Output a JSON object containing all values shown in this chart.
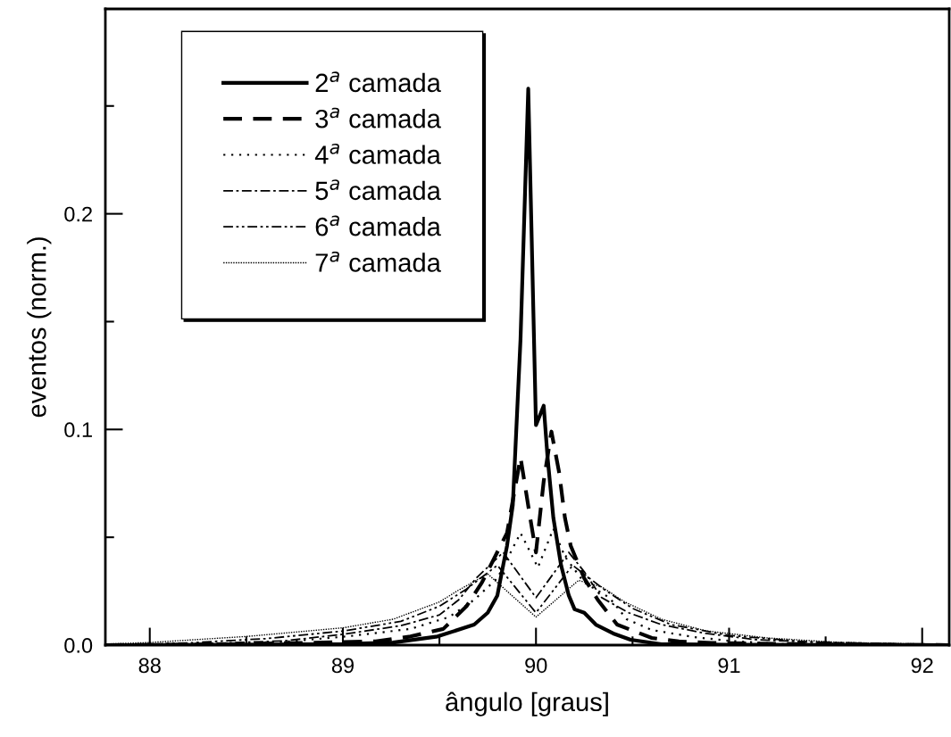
{
  "chart_data": {
    "type": "line",
    "xlabel": "ângulo [graus]",
    "ylabel": "eventos (norm.)",
    "xlim": [
      87.77,
      92.14
    ],
    "ylim": [
      0,
      0.295
    ],
    "xticks": [
      88,
      {
        "value": 88.5,
        "label": null
      },
      89,
      {
        "value": 89.5,
        "label": null
      },
      90,
      {
        "value": 90.5,
        "label": null
      },
      91,
      {
        "value": 91.5,
        "label": null
      },
      92
    ],
    "yticks": [
      {
        "value": 0,
        "label": "0.0"
      },
      {
        "value": 0.05,
        "label": null
      },
      {
        "value": 0.1,
        "label": "0.1"
      },
      {
        "value": 0.15,
        "label": null
      },
      {
        "value": 0.2,
        "label": "0.2"
      },
      {
        "value": 0.25,
        "label": null
      }
    ],
    "grid": false,
    "legend": "top left",
    "series": [
      {
        "name": "2$^{a}$ camada",
        "color": "#000000",
        "line_style": "solid",
        "x": [
          87.77,
          88.0,
          88.61,
          89.0,
          89.26,
          89.49,
          89.68,
          89.75,
          89.8,
          89.83,
          89.85,
          89.88,
          89.92,
          89.96,
          90.0,
          90.04,
          90.06,
          90.09,
          90.13,
          90.17,
          90.2,
          90.25,
          90.31,
          90.4,
          90.49,
          90.65,
          91.0,
          92.14
        ],
        "values": [
          0,
          0,
          0.0003,
          0.0005,
          0.0012,
          0.004,
          0.0095,
          0.015,
          0.023,
          0.037,
          0.046,
          0.065,
          0.142,
          0.258,
          0.102,
          0.111,
          0.087,
          0.059,
          0.037,
          0.023,
          0.0166,
          0.015,
          0.0095,
          0.0054,
          0.0025,
          0.0004,
          0.0002,
          0
        ]
      },
      {
        "name": "3$^{a}$ camada",
        "color": "#000000",
        "line_style": "dashed",
        "x": [
          87.77,
          88.5,
          89.17,
          89.35,
          89.52,
          89.64,
          89.72,
          89.85,
          89.92,
          89.97,
          90.0,
          90.04,
          90.08,
          90.12,
          90.15,
          90.18,
          90.25,
          90.32,
          90.42,
          90.6,
          90.74,
          90.91,
          91.5,
          92.14
        ],
        "values": [
          0,
          0.0005,
          0.0017,
          0.004,
          0.0075,
          0.018,
          0.029,
          0.052,
          0.087,
          0.059,
          0.043,
          0.076,
          0.099,
          0.08,
          0.059,
          0.046,
          0.031,
          0.021,
          0.0095,
          0.0033,
          0.0017,
          0.001,
          0.0003,
          0
        ]
      },
      {
        "name": "4$^{a}$ camada",
        "color": "#000000",
        "line_style": "dotted",
        "x": [
          87.77,
          88.4,
          88.72,
          89.02,
          89.35,
          89.55,
          89.68,
          89.8,
          89.92,
          90.01,
          90.09,
          90.15,
          90.25,
          90.38,
          90.47,
          90.6,
          90.82,
          91.0,
          91.26,
          92.14
        ],
        "values": [
          0,
          0.0005,
          0.0017,
          0.004,
          0.0075,
          0.013,
          0.021,
          0.031,
          0.052,
          0.036,
          0.054,
          0.041,
          0.029,
          0.022,
          0.012,
          0.007,
          0.0037,
          0.002,
          0.0005,
          0
        ]
      },
      {
        "name": "5$^{a}$ camada",
        "color": "#000000",
        "line_style": "dashdot",
        "x": [
          87.77,
          88.3,
          88.7,
          89.0,
          89.3,
          89.5,
          89.6,
          89.69,
          89.83,
          90.0,
          90.17,
          90.25,
          90.34,
          90.48,
          90.65,
          90.88,
          91.14,
          91.49,
          92.14
        ],
        "values": [
          0,
          0.0007,
          0.002,
          0.005,
          0.009,
          0.014,
          0.021,
          0.031,
          0.043,
          0.022,
          0.043,
          0.034,
          0.022,
          0.015,
          0.0095,
          0.0054,
          0.0025,
          0.0012,
          0
        ]
      },
      {
        "name": "6$^{a}$ camada",
        "color": "#000000",
        "line_style": "dashdotdot",
        "x": [
          87.77,
          88.2,
          88.6,
          89.0,
          89.3,
          89.5,
          89.64,
          89.8,
          90.0,
          90.19,
          90.35,
          90.5,
          90.7,
          91.0,
          91.4,
          92.14
        ],
        "values": [
          0,
          0.001,
          0.003,
          0.0065,
          0.011,
          0.018,
          0.026,
          0.037,
          0.015,
          0.037,
          0.026,
          0.017,
          0.0095,
          0.0045,
          0.0015,
          0
        ]
      },
      {
        "name": "7$^{a}$ camada",
        "color": "#000000",
        "line_style": "densely dotted",
        "x": [
          87.77,
          88.0,
          88.5,
          89.0,
          89.26,
          89.5,
          89.59,
          89.75,
          90.0,
          90.22,
          90.34,
          90.46,
          90.65,
          90.88,
          91.2,
          91.58,
          92.14
        ],
        "values": [
          0.0005,
          0.0012,
          0.004,
          0.008,
          0.012,
          0.02,
          0.025,
          0.033,
          0.013,
          0.03,
          0.027,
          0.02,
          0.012,
          0.0066,
          0.0033,
          0.0012,
          0.0003
        ]
      }
    ]
  }
}
